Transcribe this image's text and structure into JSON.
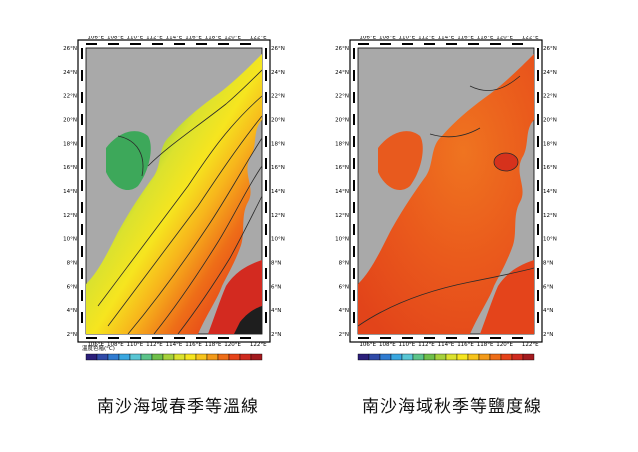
{
  "maps": [
    {
      "id": "spring-temperature",
      "caption": "南沙海域春季等溫線",
      "legend_title": "溫度色階(°C)",
      "palette": [
        "#2b1f7a",
        "#2f4aa8",
        "#2f7bd0",
        "#3aa7e0",
        "#59c6d4",
        "#5cc48a",
        "#6fbf4a",
        "#a6d13b",
        "#dbe22e",
        "#f6e51f",
        "#f7c41c",
        "#f39a1a",
        "#ee6d18",
        "#e6431a",
        "#cf2a1f",
        "#a31a1e"
      ]
    },
    {
      "id": "autumn-salinity",
      "caption": "南沙海域秋季等鹽度線",
      "legend_title": "",
      "palette": [
        "#2b1f7a",
        "#2f4aa8",
        "#2f7bd0",
        "#3aa7e0",
        "#59c6d4",
        "#5cc48a",
        "#6fbf4a",
        "#a6d13b",
        "#dbe22e",
        "#f6e51f",
        "#f7c41c",
        "#f39a1a",
        "#ee6d18",
        "#e6431a",
        "#cf2a1f",
        "#a31a1e"
      ]
    }
  ],
  "axes": {
    "lon_labels": [
      "106°E",
      "108°E",
      "110°E",
      "112°E",
      "114°E",
      "116°E",
      "118°E",
      "120°E",
      "122°E"
    ],
    "lat_labels": [
      "26°N",
      "24°N",
      "22°N",
      "20°N",
      "18°N",
      "16°N",
      "14°N",
      "12°N",
      "10°N",
      "8°N",
      "6°N",
      "4°N",
      "2°N"
    ]
  },
  "colors": {
    "land": "#a9a9a9",
    "contour": "#2a2a2a",
    "frame": "#000000"
  }
}
